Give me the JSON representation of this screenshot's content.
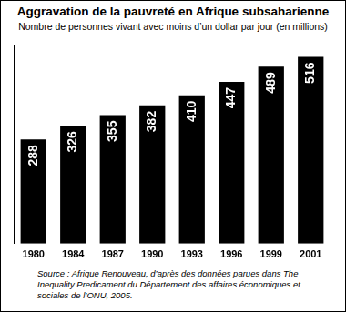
{
  "chart_data": {
    "type": "bar",
    "title": "Aggravation de la pauvreté en Afrique subsaharienne",
    "subtitle": "Nombre de personnes vivant avec moins d’un dollar par jour (en millions)",
    "categories": [
      "1980",
      "1984",
      "1987",
      "1990",
      "1993",
      "1996",
      "1999",
      "2001"
    ],
    "values": [
      288,
      326,
      355,
      382,
      410,
      447,
      489,
      516
    ],
    "color": "#000000",
    "ylim": [
      0,
      550
    ],
    "grid": false,
    "data_labels": true,
    "tick_labels": "x",
    "source": "Source : Afrique Renouveau, d’après des données parues dans The Inequality Predicament du Département des affaires économiques et sociales de l’ONU, 2005."
  }
}
